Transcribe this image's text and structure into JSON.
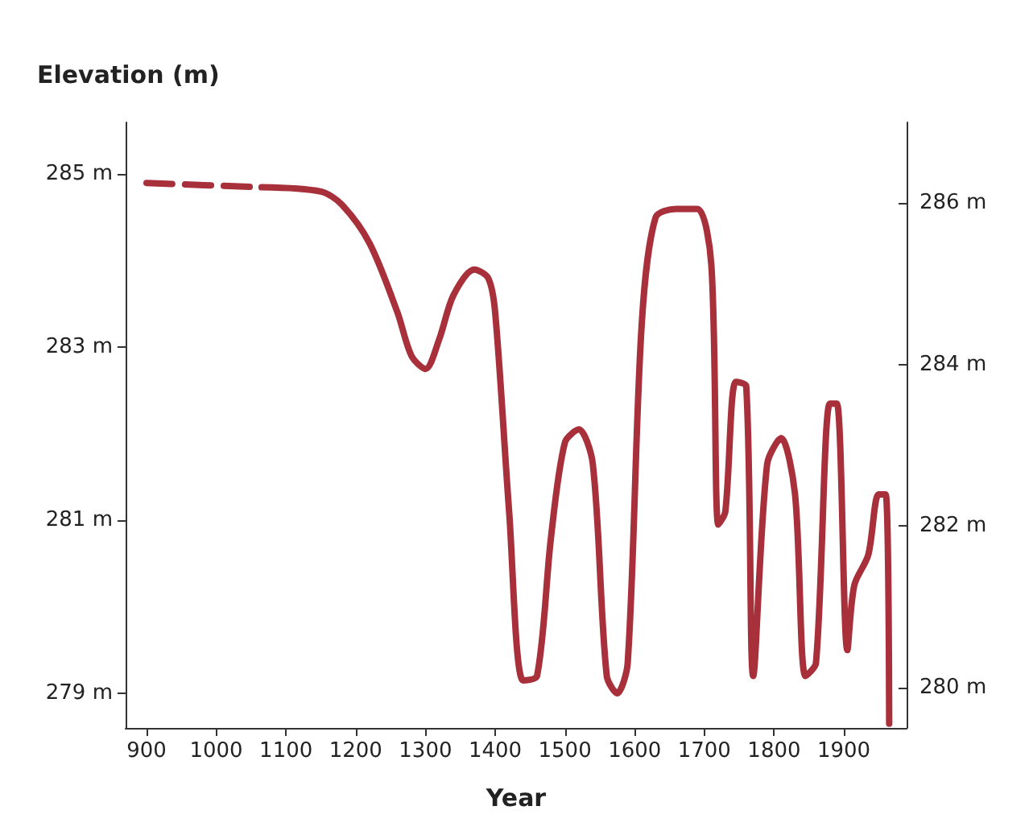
{
  "chart_data": {
    "type": "line",
    "ylabel": "Elevation (m)",
    "xlabel": "Year",
    "xlim": [
      870,
      1990
    ],
    "xticks": [
      900,
      1000,
      1100,
      1200,
      1300,
      1400,
      1500,
      1600,
      1700,
      1800,
      1900
    ],
    "ylim": [
      278.6,
      285.6
    ],
    "yticks": [
      {
        "value": 279,
        "label": "279 m"
      },
      {
        "value": 281,
        "label": "281 m"
      },
      {
        "value": 283,
        "label": "283 m"
      },
      {
        "value": 285,
        "label": "285 m"
      }
    ],
    "y2lim": [
      279.5,
      287
    ],
    "y2ticks": [
      {
        "value": 280,
        "label": "280 m"
      },
      {
        "value": 282,
        "label": "282 m"
      },
      {
        "value": 284,
        "label": "284 m"
      },
      {
        "value": 286,
        "label": "286 m"
      }
    ],
    "grid": false,
    "series": [
      {
        "color": "#a8303a",
        "line_style": "dashed",
        "x": [
          900,
          1065
        ],
        "values": [
          284.9,
          284.85
        ]
      },
      {
        "color": "#a8303a",
        "line_style": "solid",
        "x": [
          1065,
          1150,
          1180,
          1220,
          1260,
          1280,
          1300,
          1320,
          1340,
          1370,
          1390,
          1400,
          1420,
          1440,
          1460,
          1480,
          1500,
          1520,
          1540,
          1560,
          1575,
          1590,
          1610,
          1630,
          1660,
          1690,
          1710,
          1720,
          1730,
          1745,
          1760,
          1770,
          1790,
          1810,
          1830,
          1845,
          1860,
          1880,
          1890,
          1905,
          1915,
          1935,
          1950,
          1960,
          1965
        ],
        "values": [
          284.85,
          284.8,
          284.65,
          284.2,
          283.4,
          282.9,
          282.75,
          283.1,
          283.6,
          283.9,
          283.8,
          283.4,
          281.1,
          279.15,
          279.2,
          280.8,
          281.9,
          282.05,
          281.65,
          279.2,
          279.0,
          279.35,
          283.25,
          284.5,
          284.6,
          284.6,
          283.95,
          280.95,
          281.1,
          282.6,
          282.55,
          279.2,
          281.65,
          281.95,
          281.3,
          279.2,
          279.35,
          282.35,
          282.35,
          279.5,
          280.25,
          280.6,
          281.3,
          281.3,
          278.65
        ]
      }
    ]
  }
}
